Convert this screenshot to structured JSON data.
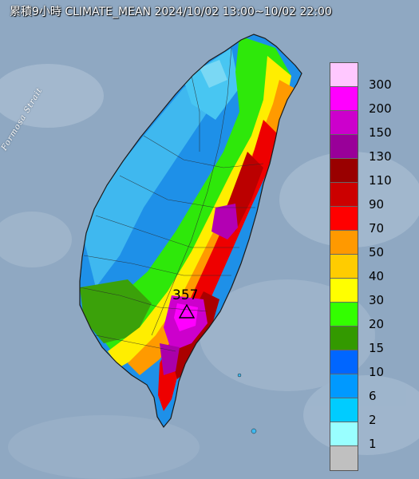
{
  "title": "累積9小時 CLIMATE_MEAN 2024/10/02 13:00~10/02 22:00",
  "sea_label": "Formosa Strait",
  "max_value_label": "357",
  "max_marker_icon": "triangle-icon",
  "legend": {
    "items": [
      {
        "label": "300",
        "color": "#ffc8ff"
      },
      {
        "label": "200",
        "color": "#ff00ff"
      },
      {
        "label": "150",
        "color": "#cc00cc"
      },
      {
        "label": "130",
        "color": "#990099"
      },
      {
        "label": "110",
        "color": "#990000"
      },
      {
        "label": "90",
        "color": "#cc0000"
      },
      {
        "label": "70",
        "color": "#ff0000"
      },
      {
        "label": "50",
        "color": "#ff9900"
      },
      {
        "label": "40",
        "color": "#ffcc00"
      },
      {
        "label": "30",
        "color": "#ffff00"
      },
      {
        "label": "20",
        "color": "#33ff00"
      },
      {
        "label": "15",
        "color": "#339900"
      },
      {
        "label": "10",
        "color": "#0066ff"
      },
      {
        "label": "6",
        "color": "#0099ff"
      },
      {
        "label": "2",
        "color": "#00ccff"
      },
      {
        "label": "1",
        "color": "#99ffff"
      },
      {
        "label": "",
        "color": "#c0c0c0"
      }
    ]
  }
}
